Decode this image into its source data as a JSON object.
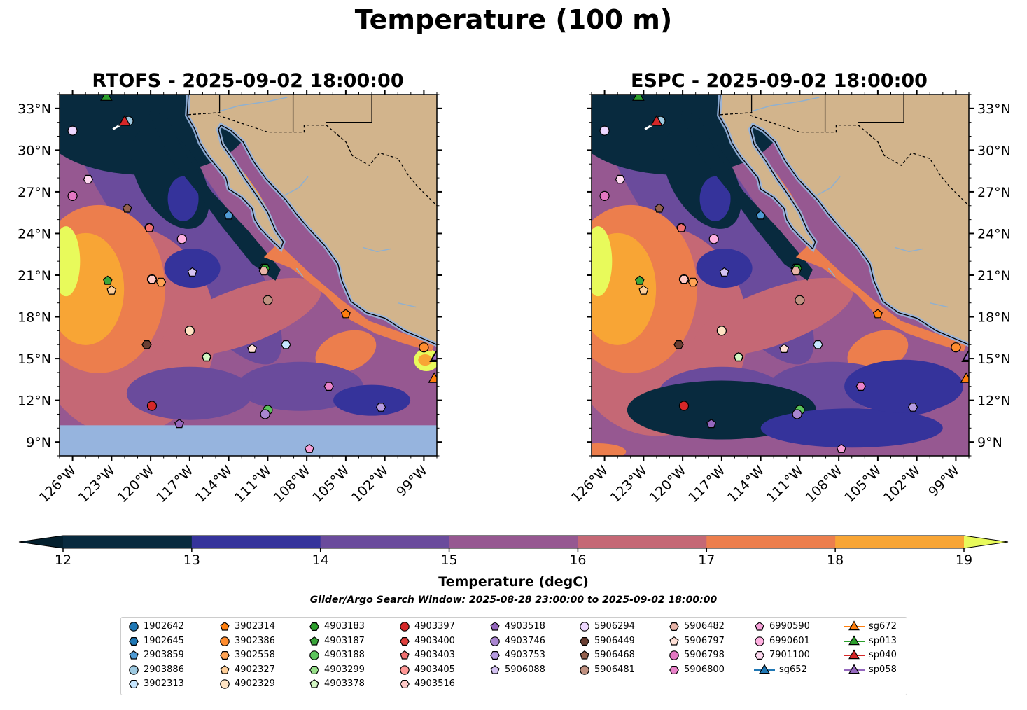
{
  "figure": {
    "title": "Temperature (100 m)",
    "colorbar_label": "Temperature (degC)",
    "search_window": "Glider/Argo Search Window: 2025-08-28 23:00:00 to 2025-09-02 18:00:00"
  },
  "panels": [
    {
      "title": "RTOFS - 2025-09-02 18:00:00"
    },
    {
      "title": "ESPC - 2025-09-02 18:00:00"
    }
  ],
  "chart_data": {
    "type": "heatmap",
    "variable": "Temperature",
    "units": "degC",
    "depth": "100 m",
    "lon_ticks": [
      "126°W",
      "123°W",
      "120°W",
      "117°W",
      "114°W",
      "111°W",
      "108°W",
      "105°W",
      "102°W",
      "99°W"
    ],
    "lat_ticks": [
      "33°N",
      "30°N",
      "27°N",
      "24°N",
      "21°N",
      "18°N",
      "15°N",
      "12°N",
      "9°N"
    ],
    "lon_range": [
      -127,
      -98
    ],
    "lat_range": [
      8,
      34
    ],
    "colorbar": {
      "levels": [
        12,
        13,
        14,
        15,
        16,
        17,
        18,
        19
      ],
      "tick_labels": [
        "12",
        "13",
        "14",
        "15",
        "16",
        "17",
        "18",
        "19"
      ],
      "colors": [
        "#082a3e",
        "#35339b",
        "#6a4b9c",
        "#965891",
        "#c56875",
        "#ec7e4d",
        "#f8a535",
        "#e8fa5b"
      ],
      "under_color": "#04202e",
      "over_color": "#e8fa5b"
    },
    "land_color": "#d2b48c",
    "nodata_color": "#96b4de",
    "platforms": [
      {
        "id": "1902642",
        "marker": "circle",
        "color": "#1f77b4",
        "lon": -111.2,
        "lat": 11.0
      },
      {
        "id": "1902645",
        "marker": "hexagon",
        "color": "#1f77b4",
        "lon": -111.3,
        "lat": 21.5
      },
      {
        "id": "2903859",
        "marker": "pentagon",
        "color": "#4f9bd4",
        "lon": -114.0,
        "lat": 25.3
      },
      {
        "id": "2903886",
        "marker": "circle",
        "color": "#9ecae1",
        "lon": -121.7,
        "lat": 32.1
      },
      {
        "id": "3902313",
        "marker": "hexagon",
        "color": "#c6e6ff",
        "lon": -109.6,
        "lat": 16.0
      },
      {
        "id": "3902314",
        "marker": "pentagon",
        "color": "#ff7f0e",
        "lon": -105.0,
        "lat": 18.2
      },
      {
        "id": "3902386",
        "marker": "circle",
        "color": "#ff8c2e",
        "lon": -99.0,
        "lat": 15.8
      },
      {
        "id": "3902558",
        "marker": "hexagon",
        "color": "#ffa354",
        "lon": -119.2,
        "lat": 20.5
      },
      {
        "id": "4902327",
        "marker": "pentagon",
        "color": "#ffcf99",
        "lon": -123.0,
        "lat": 19.9
      },
      {
        "id": "4902329",
        "marker": "circle",
        "color": "#ffe4c4",
        "lon": -117.0,
        "lat": 17.0
      },
      {
        "id": "4903183",
        "marker": "hexagon",
        "color": "#2ca02c",
        "lon": -111.2,
        "lat": 21.5
      },
      {
        "id": "4903187",
        "marker": "pentagon",
        "color": "#3aa53a",
        "lon": -123.3,
        "lat": 20.6
      },
      {
        "id": "4903188",
        "marker": "circle",
        "color": "#5bc45b",
        "lon": -111.0,
        "lat": 11.3
      },
      {
        "id": "4903299",
        "marker": "hexagon",
        "color": "#98df8a",
        "lon": -115.7,
        "lat": 15.1
      },
      {
        "id": "4903378",
        "marker": "pentagon",
        "color": "#d4f7c4",
        "lon": -115.7,
        "lat": 15.1
      },
      {
        "id": "4903397",
        "marker": "circle",
        "color": "#d62728",
        "lon": -119.9,
        "lat": 11.6
      },
      {
        "id": "4903400",
        "marker": "hexagon",
        "color": "#e0403e",
        "lon": -120.1,
        "lat": 24.4
      },
      {
        "id": "4903403",
        "marker": "pentagon",
        "color": "#f07070",
        "lon": -120.1,
        "lat": 24.4
      },
      {
        "id": "4903405",
        "marker": "circle",
        "color": "#ff9896",
        "lon": -119.9,
        "lat": 20.7
      },
      {
        "id": "4903516",
        "marker": "hexagon",
        "color": "#ffc9c7",
        "lon": -119.9,
        "lat": 20.7
      },
      {
        "id": "4903518",
        "marker": "pentagon",
        "color": "#9467bd",
        "lon": -117.8,
        "lat": 10.3
      },
      {
        "id": "4903746",
        "marker": "circle",
        "color": "#a985d0",
        "lon": -111.2,
        "lat": 11.0
      },
      {
        "id": "4903753",
        "marker": "hexagon",
        "color": "#b69ae0",
        "lon": -102.3,
        "lat": 11.5
      },
      {
        "id": "5906088",
        "marker": "pentagon",
        "color": "#d4c2f2",
        "lon": -116.8,
        "lat": 21.2
      },
      {
        "id": "5906294",
        "marker": "circle",
        "color": "#eed7ff",
        "lon": -126.0,
        "lat": 31.4
      },
      {
        "id": "5906449",
        "marker": "hexagon",
        "color": "#6b3f33",
        "lon": -120.3,
        "lat": 16.0
      },
      {
        "id": "5906468",
        "marker": "pentagon",
        "color": "#94604d",
        "lon": -121.8,
        "lat": 25.8
      },
      {
        "id": "5906481",
        "marker": "circle",
        "color": "#c09181",
        "lon": -111.0,
        "lat": 19.2
      },
      {
        "id": "5906482",
        "marker": "hexagon",
        "color": "#e8b4a8",
        "lon": -111.3,
        "lat": 21.3
      },
      {
        "id": "5906797",
        "marker": "pentagon",
        "color": "#ffe0d6",
        "lon": -112.2,
        "lat": 15.7
      },
      {
        "id": "5906798",
        "marker": "circle",
        "color": "#e377c2",
        "lon": -126.0,
        "lat": 26.7
      },
      {
        "id": "5906800",
        "marker": "hexagon",
        "color": "#e982c9",
        "lon": -106.3,
        "lat": 13.0
      },
      {
        "id": "6990590",
        "marker": "pentagon",
        "color": "#f7a1d9",
        "lon": -107.8,
        "lat": 8.5
      },
      {
        "id": "6990601",
        "marker": "circle",
        "color": "#ffb0e0",
        "lon": -117.6,
        "lat": 23.6
      },
      {
        "id": "7901100",
        "marker": "hexagon",
        "color": "#ffd9f0",
        "lon": -124.8,
        "lat": 27.9
      },
      {
        "id": "sg652",
        "marker": "triangle",
        "color": "#1f77b4",
        "lon": -98.1,
        "lat": 15.1
      },
      {
        "id": "sg672",
        "marker": "triangle",
        "color": "#ff7f0e",
        "lon": -98.2,
        "lat": 13.6
      },
      {
        "id": "sp013",
        "marker": "triangle",
        "color": "#2ca02c",
        "lon": -123.4,
        "lat": 33.9
      },
      {
        "id": "sp040",
        "marker": "triangle",
        "color": "#d62728",
        "lon": -122.0,
        "lat": 32.1
      },
      {
        "id": "sp058",
        "marker": "triangle",
        "color": "#9467bd",
        "lon": -98.0,
        "lat": 15.2
      }
    ]
  },
  "legend": {
    "columns": [
      [
        "1902642",
        "1902645",
        "2903859",
        "2903886",
        "3902313"
      ],
      [
        "3902314",
        "3902386",
        "3902558",
        "4902327",
        "4902329"
      ],
      [
        "4903183",
        "4903187",
        "4903188",
        "4903299",
        "4903378"
      ],
      [
        "4903397",
        "4903400",
        "4903403",
        "4903405",
        "4903516"
      ],
      [
        "4903518",
        "4903746",
        "4903753",
        "5906088"
      ],
      [
        "5906294",
        "5906449",
        "5906468",
        "5906481"
      ],
      [
        "5906482",
        "5906797",
        "5906798",
        "5906800"
      ],
      [
        "6990590",
        "6990601",
        "7901100",
        "sg652"
      ],
      [
        "sg672",
        "sp013",
        "sp040",
        "sp058"
      ]
    ]
  }
}
